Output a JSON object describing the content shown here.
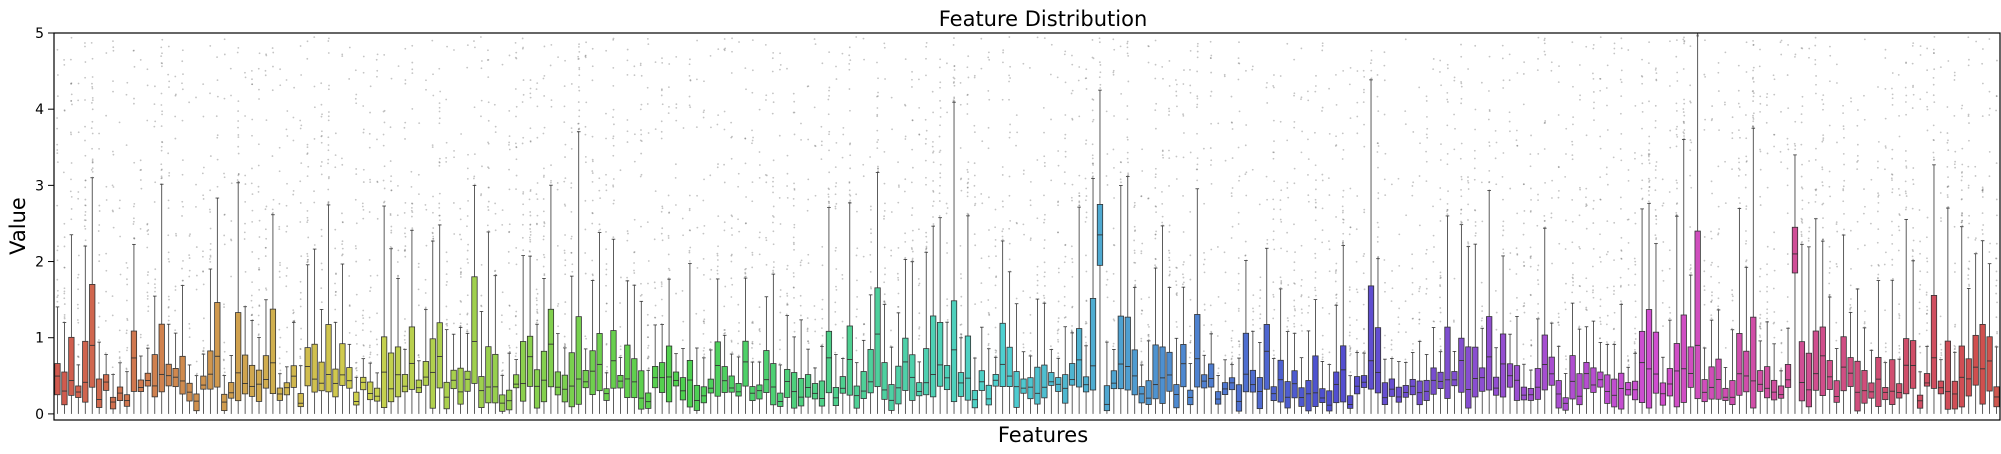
{
  "chart_data": {
    "type": "box",
    "title": "Feature Distribution",
    "xlabel": "Features",
    "ylabel": "Value",
    "ylim": [
      -0.08,
      5
    ],
    "yticks": [
      0,
      1,
      2,
      3,
      4,
      5
    ],
    "grid": false,
    "legend": "none",
    "x_tick_labels_shown": false,
    "n_features": 280,
    "palette": "husl",
    "outlier_marker_color": "#555555",
    "series": [
      {
        "quartiles_sample": [
          {
            "feature": 1,
            "q1": 0.12,
            "median": 0.3,
            "q3": 0.55,
            "whisker_hi": 1.2
          },
          {
            "feature": 5,
            "q1": 0.35,
            "median": 0.9,
            "q3": 1.7,
            "whisker_hi": 3.1
          },
          {
            "feature": 60,
            "q1": 0.4,
            "median": 0.95,
            "q3": 1.8,
            "whisker_hi": 3.0
          },
          {
            "feature": 150,
            "q1": 1.95,
            "median": 2.35,
            "q3": 2.75,
            "whisker_hi": 4.25
          },
          {
            "feature": 236,
            "q1": 0.2,
            "median": 0.9,
            "q3": 2.4,
            "whisker_hi": 5.0
          },
          {
            "feature": 250,
            "q1": 1.85,
            "median": 2.1,
            "q3": 2.45,
            "whisker_hi": 3.4
          }
        ]
      }
    ]
  }
}
